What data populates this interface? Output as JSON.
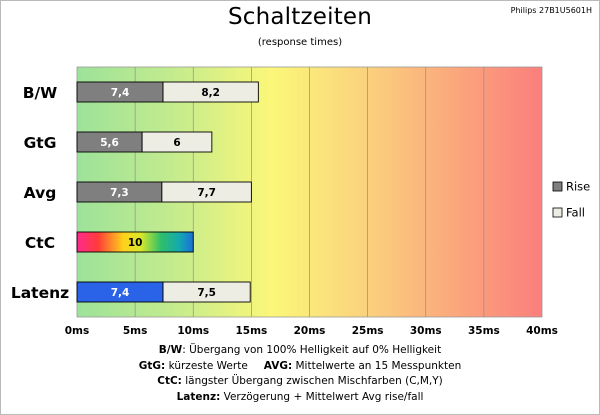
{
  "header": {
    "title": "Schaltzeiten",
    "subtitle": "(response times)",
    "model": "Philips 27B1U5601H"
  },
  "chart_data": {
    "type": "bar",
    "orientation": "horizontal",
    "stacked": true,
    "categories": [
      "B/W",
      "GtG",
      "Avg",
      "CtC",
      "Latenz"
    ],
    "series": [
      {
        "name": "Rise",
        "values": [
          7.4,
          5.6,
          7.3,
          null,
          7.4
        ],
        "labels": [
          "7,4",
          "5,6",
          "7,3",
          "",
          "7,4"
        ],
        "color": "#7f7f7f"
      },
      {
        "name": "Fall",
        "values": [
          8.2,
          6,
          7.7,
          null,
          7.5
        ],
        "labels": [
          "8,2",
          "6",
          "7,7",
          "",
          "7,5"
        ],
        "color": "#eeede3"
      }
    ],
    "ctc": {
      "value": 10,
      "label": "10",
      "style": "rainbow gradient"
    },
    "latenz_rise_color": "#2a63e8",
    "xlim": [
      0,
      40
    ],
    "ticks": [
      0,
      5,
      10,
      15,
      20,
      25,
      30,
      35,
      40
    ],
    "tick_labels": [
      "0ms",
      "5ms",
      "10ms",
      "15ms",
      "20ms",
      "25ms",
      "30ms",
      "35ms",
      "40ms"
    ],
    "background": "gradient green → yellow → red",
    "grid": true,
    "legend_position": "right"
  },
  "notes": {
    "bw_key": "B/W",
    "bw_text": ":  Übergang von 100% Helligkeit auf 0% Helligkeit",
    "gtg_key": "GtG:",
    "gtg_text": " kürzeste  Werte",
    "avg_key": "AVG:",
    "avg_text": " Mittelwerte  an 15 Messpunkten",
    "ctc_key": "CtC:",
    "ctc_text": " längster Übergang  zwischen Mischfarben (C,M,Y)",
    "latenz_key": "Latenz:",
    "latenz_text": " Verzögerung  + Mittelwert  Avg rise/fall"
  }
}
